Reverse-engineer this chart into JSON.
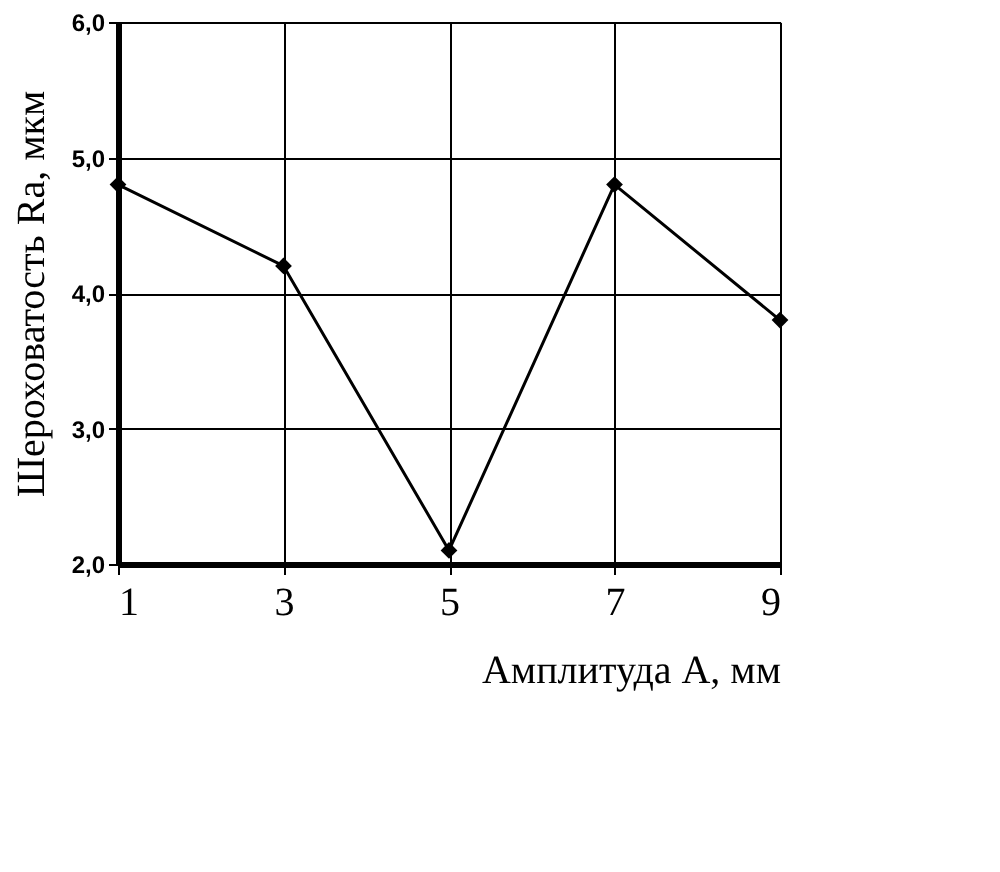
{
  "chart_data": {
    "type": "line",
    "xlabel": "Амплитуда А, мм",
    "ylabel": "Шероховатость Ra, мкм",
    "x": [
      1,
      3,
      5,
      7,
      9
    ],
    "series": [
      {
        "color": "#000000",
        "values": [
          4.8,
          4.2,
          2.1,
          4.8,
          3.8
        ]
      }
    ],
    "xlim": [
      1,
      9
    ],
    "xticks": [
      1,
      3,
      5,
      7,
      9
    ],
    "ylim": [
      2,
      6
    ],
    "yticks": [
      {
        "value": 2,
        "label": "2,0"
      },
      {
        "value": 3,
        "label": "3,0"
      },
      {
        "value": 4,
        "label": "4,0"
      },
      {
        "value": 5,
        "label": "5,0"
      },
      {
        "value": 6,
        "label": "6,0"
      }
    ],
    "grid": true,
    "marker": "diamond",
    "line_style": "solid",
    "legend": false
  }
}
